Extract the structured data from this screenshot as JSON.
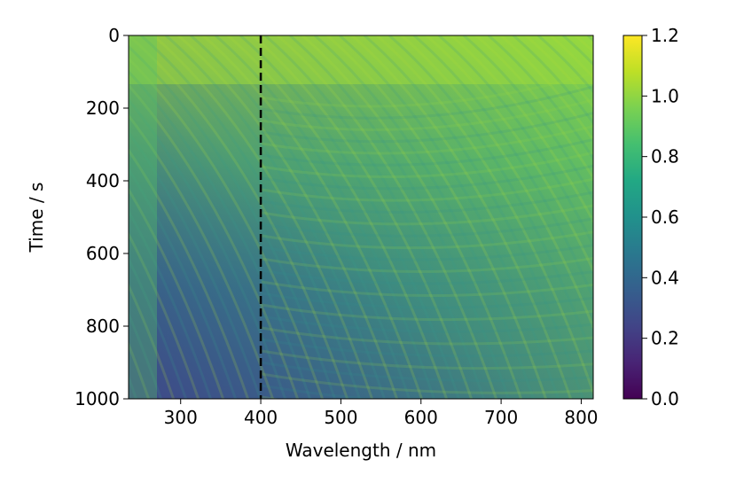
{
  "chart_data": {
    "type": "heatmap",
    "title": "",
    "xlabel": "Wavelength / nm",
    "ylabel": "Time / s",
    "xlim": [
      235,
      815
    ],
    "ylim": [
      1000,
      0
    ],
    "x_ticks": [
      300,
      400,
      500,
      600,
      700,
      800
    ],
    "x_tick_labels": [
      "300",
      "400",
      "500",
      "600",
      "700",
      "800"
    ],
    "y_ticks": [
      0,
      200,
      400,
      600,
      800,
      1000
    ],
    "y_tick_labels": [
      "0",
      "200",
      "400",
      "600",
      "800",
      "1000"
    ],
    "colormap": "viridis",
    "color_range": [
      0.0,
      1.2
    ],
    "colorbar_ticks": [
      0.0,
      0.2,
      0.4,
      0.6,
      0.8,
      1.0,
      1.2
    ],
    "colorbar_tick_labels": [
      "0.0",
      "0.2",
      "0.4",
      "0.6",
      "0.8",
      "1.0",
      "1.2"
    ],
    "reference_line": {
      "x": 400,
      "style": "dashed",
      "color": "#000000"
    },
    "intensity_samples": [
      {
        "wavelength": 260,
        "time": 0,
        "value": 0.92
      },
      {
        "wavelength": 400,
        "time": 0,
        "value": 0.98
      },
      {
        "wavelength": 800,
        "time": 0,
        "value": 0.9
      },
      {
        "wavelength": 700,
        "time": 200,
        "value": 0.95
      },
      {
        "wavelength": 300,
        "time": 500,
        "value": 0.72
      },
      {
        "wavelength": 300,
        "time": 800,
        "value": 0.42
      },
      {
        "wavelength": 300,
        "time": 950,
        "value": 0.35
      },
      {
        "wavelength": 500,
        "time": 950,
        "value": 0.62
      },
      {
        "wavelength": 800,
        "time": 950,
        "value": 0.8
      }
    ]
  }
}
